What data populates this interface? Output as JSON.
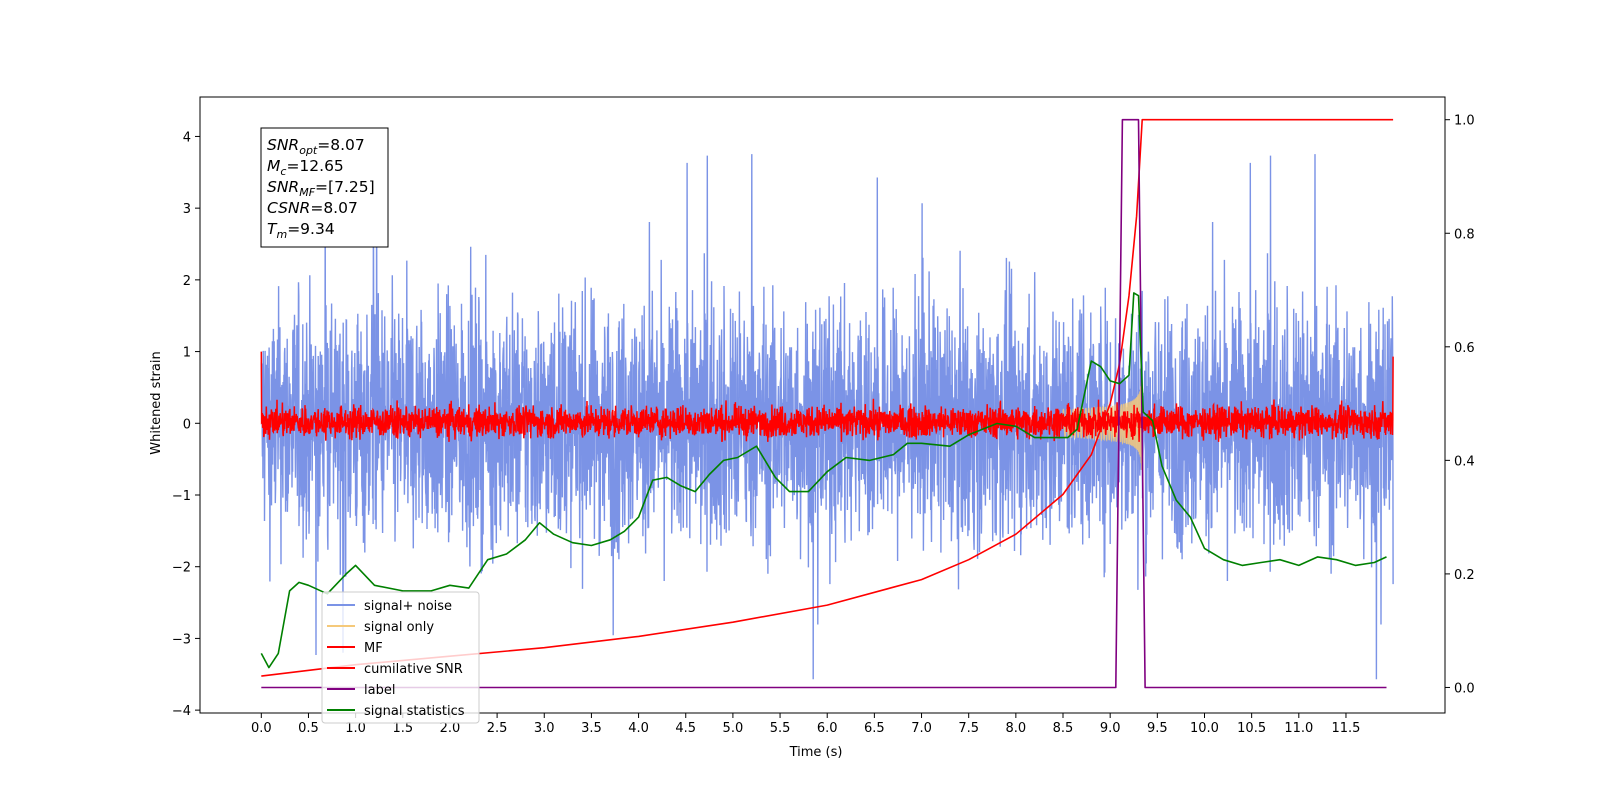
{
  "chart_data": {
    "type": "line",
    "xlabel": "Time (s)",
    "ylabel_left": "Whitened strain",
    "ylabel_right": "",
    "xlim": [
      -0.65,
      12.55
    ],
    "ylim_left": [
      -4.04,
      4.55
    ],
    "ylim_right": [
      -0.045,
      1.04
    ],
    "x_ticks": [
      0.0,
      0.5,
      1.0,
      1.5,
      2.0,
      2.5,
      3.0,
      3.5,
      4.0,
      4.5,
      5.0,
      5.5,
      6.0,
      6.5,
      7.0,
      7.5,
      8.0,
      8.5,
      9.0,
      9.5,
      10.0,
      10.5,
      11.0,
      11.5
    ],
    "x_tick_labels": [
      "0.0",
      "0.5",
      "1.0",
      "1.5",
      "2.0",
      "2.5",
      "3.0",
      "3.5",
      "4.0",
      "4.5",
      "5.0",
      "5.5",
      "6.0",
      "6.5",
      "7.0",
      "7.5",
      "8.0",
      "8.5",
      "9.0",
      "9.5",
      "10.0",
      "10.5",
      "11.0",
      "11.5"
    ],
    "y_left_ticks": [
      -4,
      -3,
      -2,
      -1,
      0,
      1,
      2,
      3,
      4
    ],
    "y_left_tick_labels": [
      "−4",
      "−3",
      "−2",
      "−1",
      "0",
      "1",
      "2",
      "3",
      "4"
    ],
    "y_right_ticks": [
      0.0,
      0.2,
      0.4,
      0.6,
      0.8,
      1.0
    ],
    "y_right_tick_labels": [
      "0.0",
      "0.2",
      "0.4",
      "0.6",
      "0.8",
      "1.0"
    ],
    "grid": false,
    "legend_position": "lower-left",
    "legend": [
      {
        "label": "signal+ noise",
        "color": "#7b93e6"
      },
      {
        "label": "signal only",
        "color": "#f5c97a"
      },
      {
        "label": "MF",
        "color": "#ff0000"
      },
      {
        "label": "cumilative SNR",
        "color": "#ff0000"
      },
      {
        "label": "label",
        "color": "#800080"
      },
      {
        "label": "signal statistics",
        "color": "#008000"
      }
    ],
    "series": [
      {
        "name": "signal+ noise",
        "axis": "left",
        "color": "#7b93e6",
        "note_shape": "noise band",
        "x_range": [
          0.0,
          12.0
        ],
        "typical_range": [
          -2.0,
          2.0
        ],
        "peak_max": 4.15,
        "peak_min": -3.6
      },
      {
        "name": "signal only",
        "axis": "left",
        "color": "#f5c97a",
        "x_range": [
          8.5,
          9.34
        ],
        "envelope_end_amplitude": 0.7
      },
      {
        "name": "MF",
        "axis": "left",
        "color": "#ff0000",
        "x_range": [
          0.0,
          12.0
        ],
        "typical_range": [
          -0.25,
          0.3
        ],
        "start_value": 1.0,
        "end_value": 0.93
      },
      {
        "name": "cumilative SNR",
        "axis": "right",
        "color": "#ff0000",
        "x": [
          0.0,
          1.0,
          2.0,
          3.0,
          4.0,
          5.0,
          6.0,
          7.0,
          7.5,
          8.0,
          8.5,
          8.8,
          9.0,
          9.1,
          9.2,
          9.28,
          9.34,
          12.0
        ],
        "values": [
          0.02,
          0.04,
          0.055,
          0.07,
          0.09,
          0.115,
          0.145,
          0.19,
          0.225,
          0.27,
          0.34,
          0.41,
          0.5,
          0.57,
          0.69,
          0.83,
          1.0,
          1.0
        ]
      },
      {
        "name": "label",
        "axis": "right",
        "color": "#800080",
        "x": [
          0.0,
          9.06,
          9.13,
          9.3,
          9.37,
          11.93
        ],
        "values": [
          0.0,
          0.0,
          1.0,
          1.0,
          0.0,
          0.0
        ]
      },
      {
        "name": "signal statistics",
        "axis": "right",
        "color": "#008000",
        "x": [
          0.0,
          0.08,
          0.18,
          0.3,
          0.4,
          0.5,
          0.7,
          0.9,
          1.0,
          1.2,
          1.5,
          1.8,
          2.0,
          2.2,
          2.4,
          2.6,
          2.8,
          2.95,
          3.1,
          3.3,
          3.5,
          3.7,
          3.85,
          4.0,
          4.15,
          4.3,
          4.45,
          4.6,
          4.75,
          4.9,
          5.05,
          5.25,
          5.45,
          5.6,
          5.8,
          6.0,
          6.2,
          6.45,
          6.7,
          6.85,
          7.0,
          7.3,
          7.5,
          7.8,
          8.0,
          8.2,
          8.4,
          8.55,
          8.65,
          8.8,
          8.9,
          9.0,
          9.1,
          9.2,
          9.25,
          9.3,
          9.35,
          9.45,
          9.55,
          9.7,
          9.85,
          10.0,
          10.2,
          10.4,
          10.6,
          10.8,
          11.0,
          11.2,
          11.4,
          11.6,
          11.8,
          11.93
        ],
        "values": [
          0.06,
          0.035,
          0.06,
          0.17,
          0.185,
          0.18,
          0.165,
          0.2,
          0.215,
          0.18,
          0.17,
          0.17,
          0.18,
          0.175,
          0.225,
          0.235,
          0.26,
          0.29,
          0.27,
          0.255,
          0.25,
          0.26,
          0.275,
          0.3,
          0.365,
          0.37,
          0.355,
          0.345,
          0.375,
          0.4,
          0.405,
          0.425,
          0.37,
          0.345,
          0.345,
          0.38,
          0.405,
          0.4,
          0.41,
          0.43,
          0.43,
          0.425,
          0.445,
          0.465,
          0.46,
          0.44,
          0.44,
          0.44,
          0.455,
          0.575,
          0.565,
          0.54,
          0.535,
          0.55,
          0.695,
          0.69,
          0.485,
          0.47,
          0.39,
          0.33,
          0.3,
          0.245,
          0.225,
          0.215,
          0.22,
          0.225,
          0.215,
          0.23,
          0.225,
          0.215,
          0.22,
          0.23
        ]
      }
    ]
  },
  "annotation": {
    "lines": [
      {
        "sym": "SNR",
        "sub": "opt",
        "value": "=8.07"
      },
      {
        "sym": "M",
        "sub": "c",
        "value": "=12.65"
      },
      {
        "sym": "SNR",
        "sub": "MF",
        "value": "=[7.25]"
      },
      {
        "sym": "CSNR",
        "sub": "",
        "value": "=8.07"
      },
      {
        "sym": "T",
        "sub": "m",
        "value": "=9.34"
      }
    ]
  }
}
